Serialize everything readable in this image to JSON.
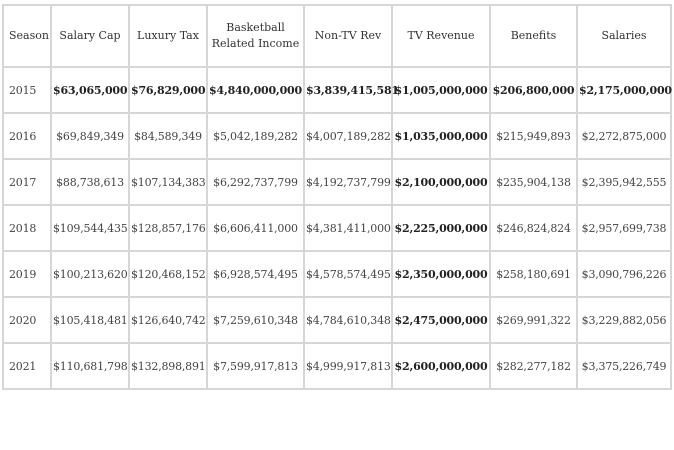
{
  "table": {
    "headers": [
      "Season",
      "Salary Cap",
      "Luxury Tax",
      "Basketball Related Income",
      "Non-TV Rev",
      "TV Revenue",
      "Benefits",
      "Salaries"
    ],
    "rows": [
      [
        "2015",
        "$63,065,000",
        "$76,829,000",
        "$4,840,000,000",
        "$3,839,415,581",
        "$1,005,000,000",
        "$206,800,000",
        "$2,175,000,000"
      ],
      [
        "2016",
        "$69,849,349",
        "$84,589,349",
        "$5,042,189,282",
        "$4,007,189,282",
        "$1,035,000,000",
        "$215,949,893",
        "$2,272,875,000"
      ],
      [
        "2017",
        "$88,738,613",
        "$107,134,383",
        "$6,292,737,799",
        "$4,192,737,799",
        "$2,100,000,000",
        "$235,904,138",
        "$2,395,942,555"
      ],
      [
        "2018",
        "$109,544,435",
        "$128,857,176",
        "$6,606,411,000",
        "$4,381,411,000",
        "$2,225,000,000",
        "$246,824,824",
        "$2,957,699,738"
      ],
      [
        "2019",
        "$100,213,620",
        "$120,468,152",
        "$6,928,574,495",
        "$4,578,574,495",
        "$2,350,000,000",
        "$258,180,691",
        "$3,090,796,226"
      ],
      [
        "2020",
        "$105,418,481",
        "$126,640,742",
        "$7,259,610,348",
        "$4,784,610,348",
        "$2,475,000,000",
        "$269,991,322",
        "$3,229,882,056"
      ],
      [
        "2021",
        "$110,681,798",
        "$132,898,891",
        "$7,599,917,813",
        "$4,999,917,813",
        "$2,600,000,000",
        "$282,277,182",
        "$3,375,226,749"
      ]
    ],
    "bold_rows": [
      0
    ],
    "bold_columns": [
      5
    ]
  }
}
